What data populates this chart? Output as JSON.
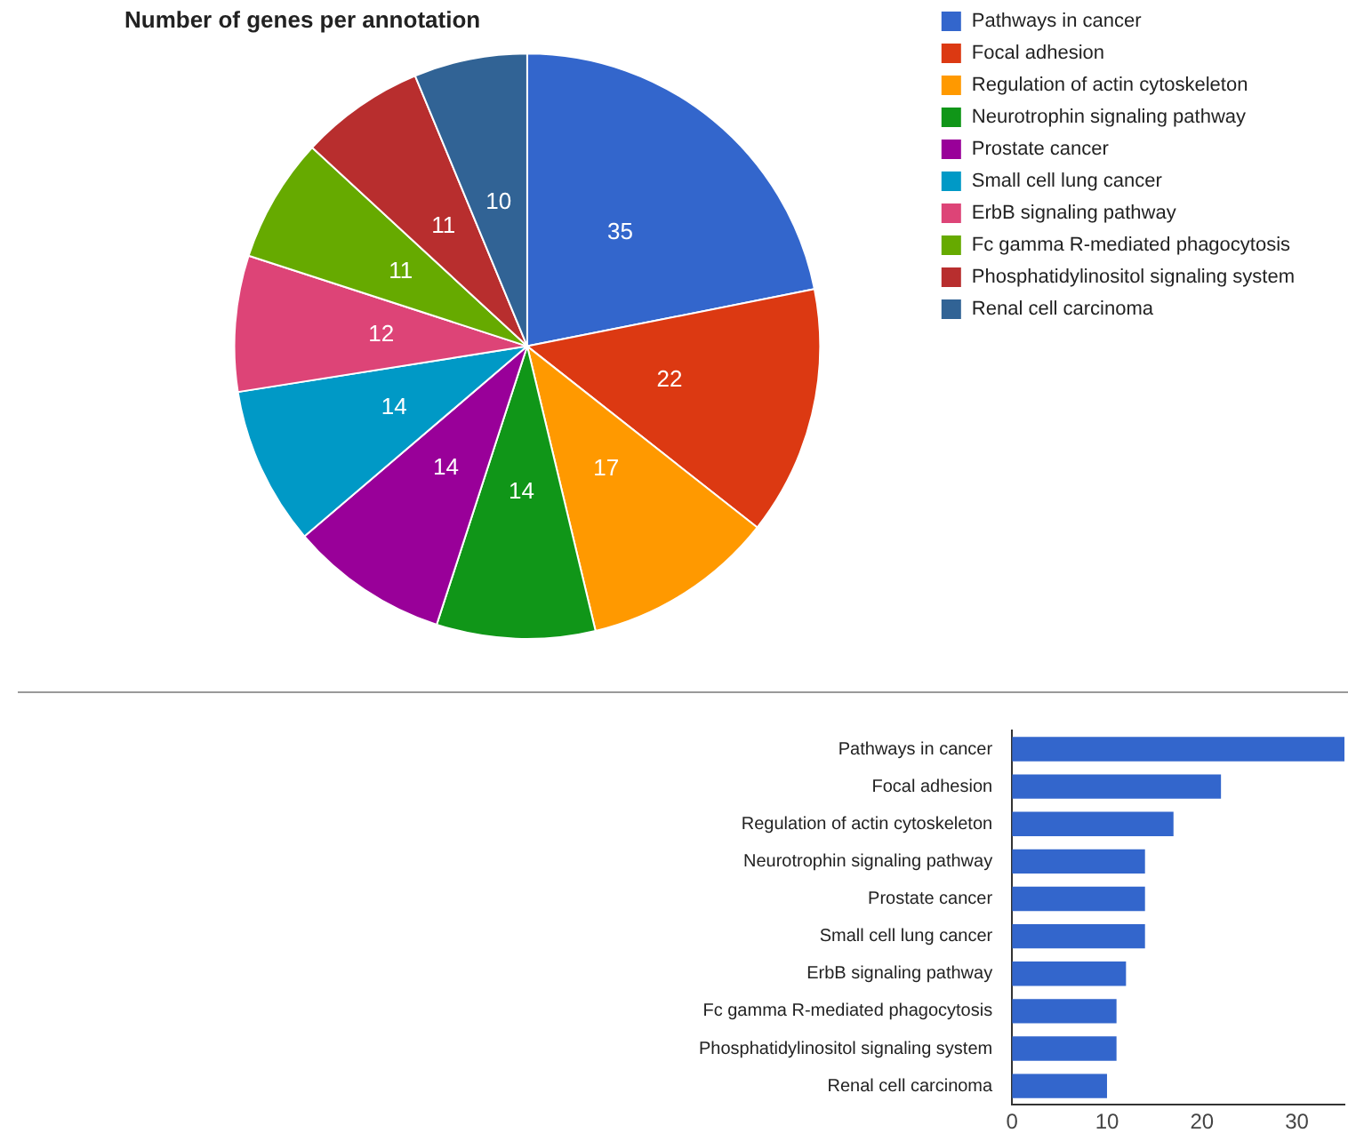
{
  "chart_data": [
    {
      "type": "pie",
      "title": "Number of genes per annotation",
      "categories": [
        "Pathways in cancer",
        "Focal adhesion",
        "Regulation of actin cytoskeleton",
        "Neurotrophin signaling pathway",
        "Prostate cancer",
        "Small cell lung cancer",
        "ErbB signaling pathway",
        "Fc gamma R-mediated phagocytosis",
        "Phosphatidylinositol signaling system",
        "Renal cell carcinoma"
      ],
      "values": [
        35,
        22,
        17,
        14,
        14,
        14,
        12,
        11,
        11,
        10
      ],
      "colors": [
        "#3366cc",
        "#dc3912",
        "#ff9900",
        "#109618",
        "#990099",
        "#0099c6",
        "#dd4477",
        "#66aa00",
        "#b82e2e",
        "#316395"
      ],
      "data_labels": true,
      "legend": "right"
    },
    {
      "type": "bar",
      "orientation": "horizontal",
      "categories": [
        "Pathways in cancer",
        "Focal adhesion",
        "Regulation of actin cytoskeleton",
        "Neurotrophin signaling pathway",
        "Prostate cancer",
        "Small cell lung cancer",
        "ErbB signaling pathway",
        "Fc gamma R-mediated phagocytosis",
        "Phosphatidylinositol signaling system",
        "Renal cell carcinoma"
      ],
      "values": [
        35,
        22,
        17,
        14,
        14,
        14,
        12,
        11,
        11,
        10
      ],
      "color": "#3366cc",
      "xlim": [
        0,
        35
      ],
      "xticks": [
        0,
        10,
        20,
        30
      ],
      "grid": false,
      "legend": false
    }
  ]
}
